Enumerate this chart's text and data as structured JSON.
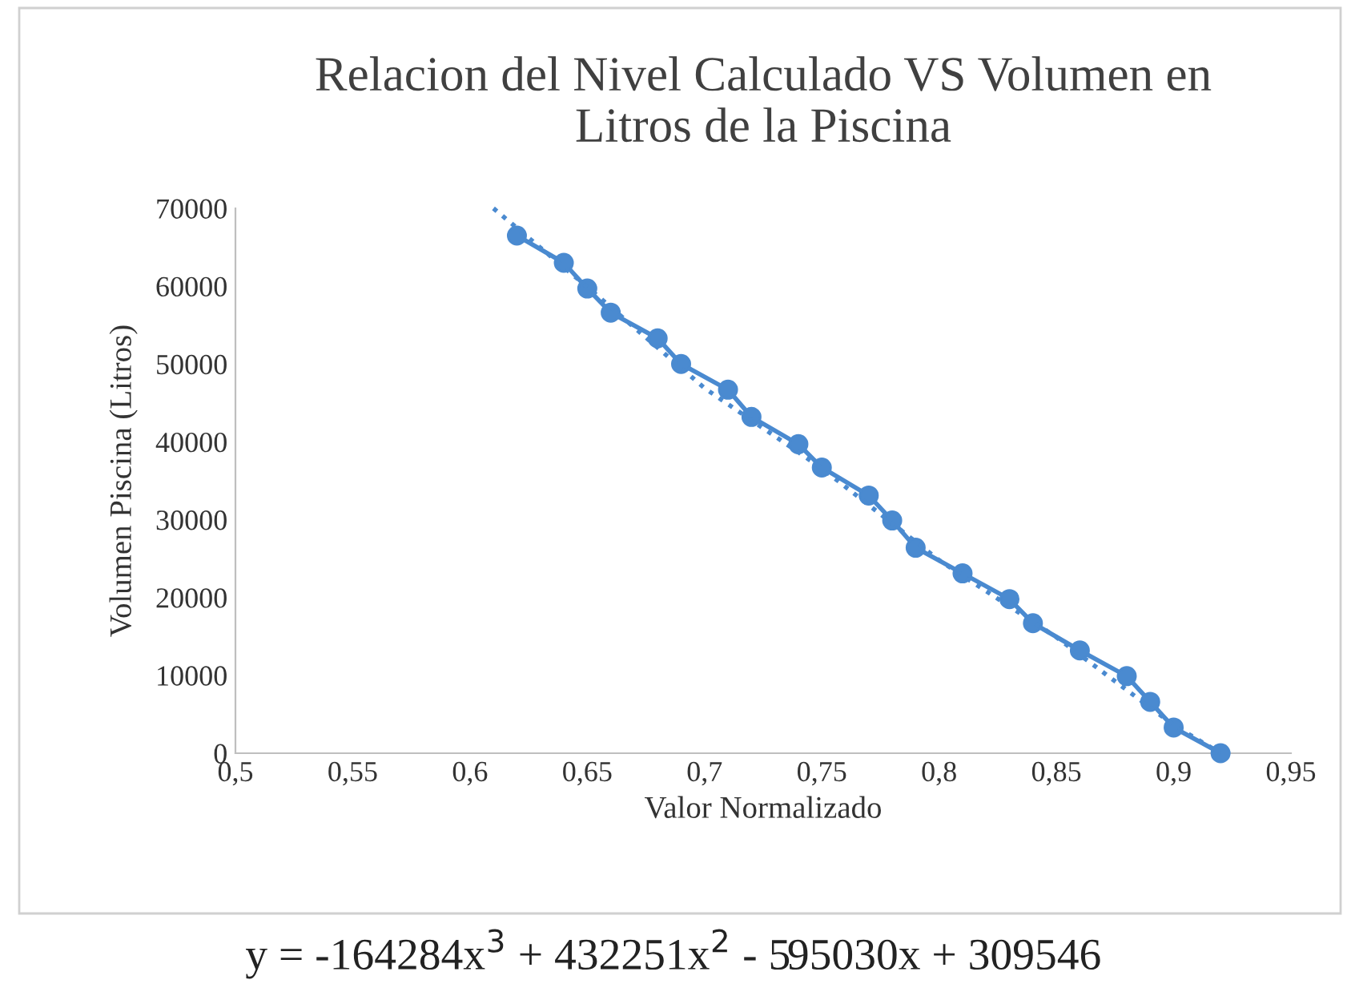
{
  "chart_data": {
    "type": "line",
    "title": "Relacion del Nivel Calculado VS Volumen en\nLitros de la Piscina",
    "xlabel": "Valor Normalizado",
    "ylabel": "Volumen Piscina (Litros)",
    "series": [
      {
        "color": "#4a8ad0",
        "marker": "circle",
        "line_style": "solid",
        "x": [
          0.62,
          0.64,
          0.65,
          0.66,
          0.68,
          0.69,
          0.71,
          0.72,
          0.74,
          0.75,
          0.77,
          0.78,
          0.79,
          0.81,
          0.83,
          0.84,
          0.86,
          0.88,
          0.89,
          0.9,
          0.92
        ],
        "values": [
          66500,
          63000,
          59700,
          56600,
          53300,
          50000,
          46700,
          43200,
          39700,
          36700,
          33100,
          29900,
          26400,
          23100,
          19800,
          16700,
          13200,
          9900,
          6600,
          3300,
          0
        ]
      },
      {
        "color": "#4a8ad0",
        "marker": "none",
        "line_style": "dotted",
        "x": [
          0.61,
          0.65,
          0.7,
          0.75,
          0.8,
          0.85,
          0.9,
          0.92
        ],
        "values": [
          70000,
          59900,
          46900,
          36600,
          24800,
          14900,
          3600,
          0
        ]
      }
    ],
    "xlim": [
      0.5,
      0.95
    ],
    "xticks": [
      {
        "value": 0.5,
        "label": "0,5"
      },
      {
        "value": 0.55,
        "label": "0,55"
      },
      {
        "value": 0.6,
        "label": "0,6"
      },
      {
        "value": 0.65,
        "label": "0,65"
      },
      {
        "value": 0.7,
        "label": "0,7"
      },
      {
        "value": 0.75,
        "label": "0,75"
      },
      {
        "value": 0.8,
        "label": "0,8"
      },
      {
        "value": 0.85,
        "label": "0,85"
      },
      {
        "value": 0.9,
        "label": "0,9"
      },
      {
        "value": 0.95,
        "label": "0,95"
      }
    ],
    "ylim": [
      0,
      70000
    ],
    "yticks": [
      0,
      10000,
      20000,
      30000,
      40000,
      50000,
      60000,
      70000
    ],
    "grid": false,
    "legend": false,
    "annotations": [
      "y = -164284x$^{3}$ + 432251x$^{2}$ - 595030x + 309546"
    ]
  }
}
